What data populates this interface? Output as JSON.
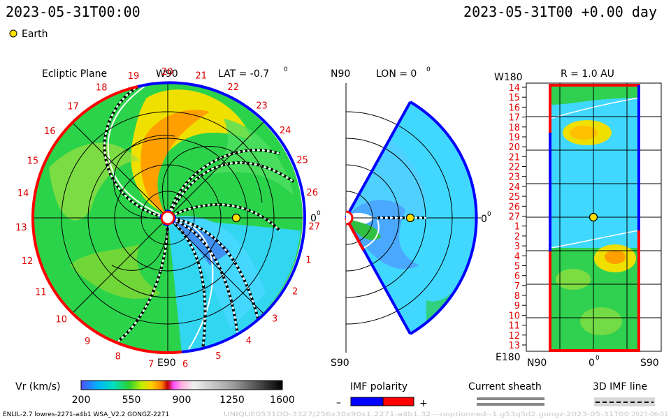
{
  "header": {
    "left_time": "2023-05-31T00:00",
    "right_time": "2023-05-31T00 +0.00 day",
    "legend_body": "Earth"
  },
  "colors": {
    "earth_fill": "#ffe000",
    "polarity_negative": "#0000ff",
    "polarity_positive": "#ff0000",
    "sheath_gray": "#888888"
  },
  "ecliptic": {
    "title": "Ecliptic Plane",
    "top_label": "W90",
    "lat_label": "LAT = -0.7",
    "lat_degree": "0",
    "right_label": "0",
    "right_degree": "0",
    "bottom_label": "E90",
    "carrington_days": [
      "19",
      "20",
      "21",
      "22",
      "23",
      "24",
      "25",
      "26",
      "27",
      "1",
      "2",
      "3",
      "4",
      "5",
      "6",
      "7",
      "8",
      "9",
      "10",
      "11",
      "12",
      "13",
      "14",
      "15",
      "16",
      "17",
      "18"
    ]
  },
  "meridional": {
    "title": "LON = 0",
    "title_degree": "0",
    "top_label": "N90",
    "bottom_label": "S90",
    "right_label": "0",
    "right_degree": "0"
  },
  "radial": {
    "title": "R = 1.0 AU",
    "top_left_label": "W180",
    "bottom_left_label": "E180",
    "x_labels": [
      "N90",
      "0",
      "S90"
    ],
    "x_zero_degree": "0",
    "y_labels": [
      "14",
      "15",
      "16",
      "17",
      "18",
      "19",
      "20",
      "21",
      "22",
      "23",
      "24",
      "25",
      "26",
      "27",
      "1",
      "2",
      "3",
      "4",
      "5",
      "6",
      "7",
      "8",
      "9",
      "10",
      "11",
      "12",
      "13"
    ]
  },
  "colorbar": {
    "label": "Vr (km/s)",
    "ticks": [
      "200",
      "550",
      "900",
      "1250",
      "1600"
    ],
    "min": 200,
    "max": 1600
  },
  "legend": {
    "imf_polarity": "IMF polarity",
    "minus": "–",
    "plus": "+",
    "current_sheath": "Current sheath",
    "imf_line": "3D IMF line"
  },
  "footer": {
    "left": "ENLIL-2.7 lowres-2271-a4b1 WSA_V2.2 GONGZ-2271",
    "center": "UNIQUE0531DD-3327/256x30x90x1.2271-a4b1.32---noptionned--1.g53q5d2.gongz-2023-05-31T00",
    "right": "2023-06-01"
  },
  "chart_data": [
    {
      "type": "heatmap",
      "title": "Ecliptic Plane",
      "quantity": "Vr (km/s)",
      "value_range": [
        200,
        1600
      ],
      "lat": -0.7,
      "earth_longitude_deg": 0,
      "earth_radius_au": 1.0
    },
    {
      "type": "heatmap",
      "title": "LON = 0",
      "quantity": "Vr (km/s)",
      "value_range": [
        200,
        1600
      ],
      "latitude_range_deg": [
        -90,
        90
      ]
    },
    {
      "type": "heatmap",
      "title": "R = 1.0 AU",
      "quantity": "Vr (km/s)",
      "value_range": [
        200,
        1600
      ],
      "x_ticks": [
        "N90",
        "0",
        "S90"
      ],
      "y_ticks": [
        "14",
        "15",
        "16",
        "17",
        "18",
        "19",
        "20",
        "21",
        "22",
        "23",
        "24",
        "25",
        "26",
        "27",
        "1",
        "2",
        "3",
        "4",
        "5",
        "6",
        "7",
        "8",
        "9",
        "10",
        "11",
        "12",
        "13"
      ]
    }
  ]
}
